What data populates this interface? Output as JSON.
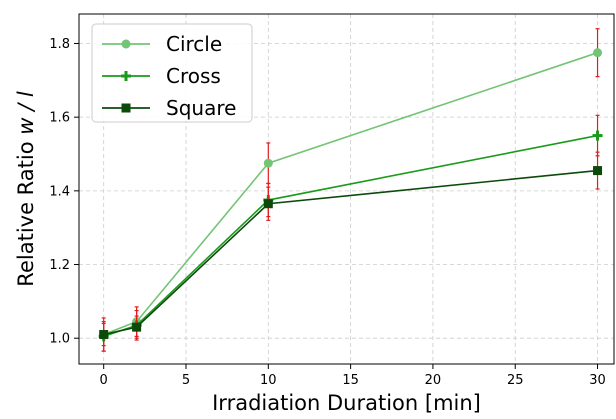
{
  "chart_data": {
    "type": "line",
    "xlabel": "Irradiation Duration [min]",
    "ylabel_main": "Relative Ratio ",
    "ylabel_italic": "w / l",
    "xlim": [
      -1.5,
      31
    ],
    "ylim": [
      0.93,
      1.88
    ],
    "xticks": [
      0,
      5,
      10,
      15,
      20,
      25,
      30
    ],
    "yticks": [
      1.0,
      1.2,
      1.4,
      1.6,
      1.8
    ],
    "grid": true,
    "legend_position": "top-left",
    "error_bar_color": "#e41a1c",
    "series": [
      {
        "name": "Circle",
        "marker": "circle",
        "color": "#74c476",
        "x": [
          0,
          2,
          10,
          30
        ],
        "y": [
          1.01,
          1.045,
          1.475,
          1.775
        ],
        "err": [
          0.045,
          0.04,
          0.055,
          0.065
        ]
      },
      {
        "name": "Cross",
        "marker": "plus",
        "color": "#1a9a1a",
        "x": [
          0,
          2,
          10,
          30
        ],
        "y": [
          1.005,
          1.035,
          1.375,
          1.55
        ],
        "err": [
          0.04,
          0.04,
          0.045,
          0.055
        ]
      },
      {
        "name": "Square",
        "marker": "square",
        "color": "#0b4a0b",
        "x": [
          0,
          2,
          10,
          30
        ],
        "y": [
          1.01,
          1.03,
          1.365,
          1.455
        ],
        "err": [
          0.03,
          0.03,
          0.045,
          0.05
        ]
      }
    ]
  }
}
